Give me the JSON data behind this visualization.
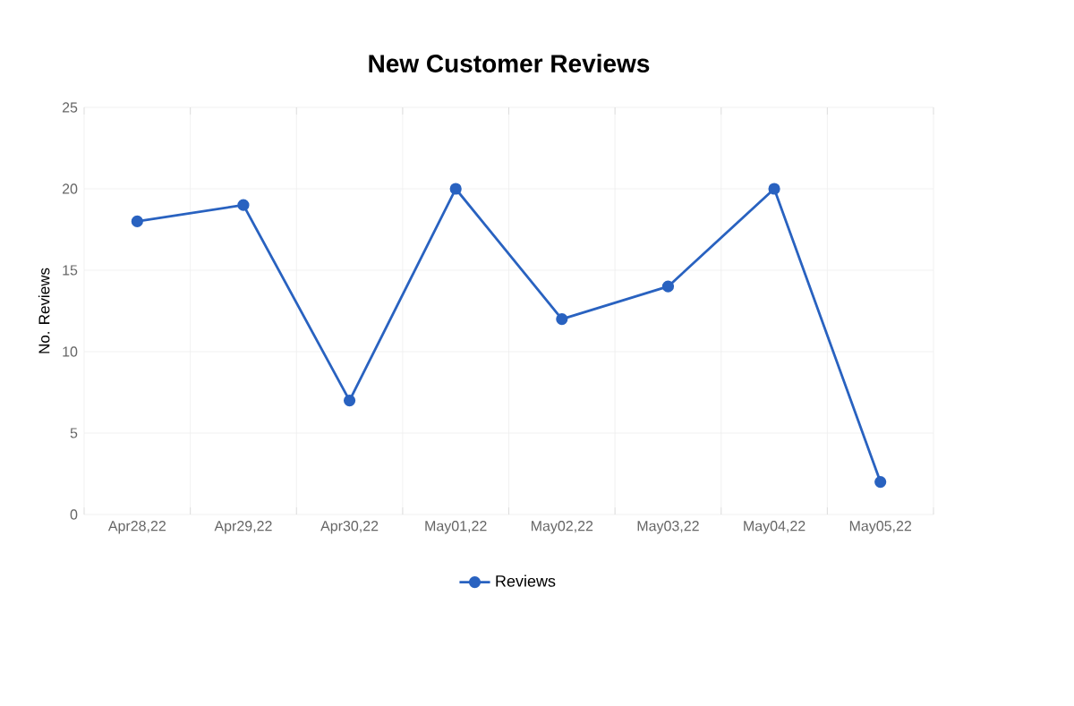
{
  "chart_data": {
    "type": "line",
    "title": "New Customer Reviews",
    "ylabel": "No. Reviews",
    "categories": [
      "Apr28,22",
      "Apr29,22",
      "Apr30,22",
      "May01,22",
      "May02,22",
      "May03,22",
      "May04,22",
      "May05,22"
    ],
    "series": [
      {
        "name": "Reviews",
        "color": "#2962c0",
        "values": [
          18,
          19,
          7,
          20,
          12,
          14,
          20,
          2
        ]
      }
    ],
    "ylim": [
      0,
      25
    ],
    "yticks": [
      0,
      5,
      10,
      15,
      20,
      25
    ],
    "grid": true,
    "legend": "bottom",
    "marker": "circle",
    "line_style": "solid"
  }
}
